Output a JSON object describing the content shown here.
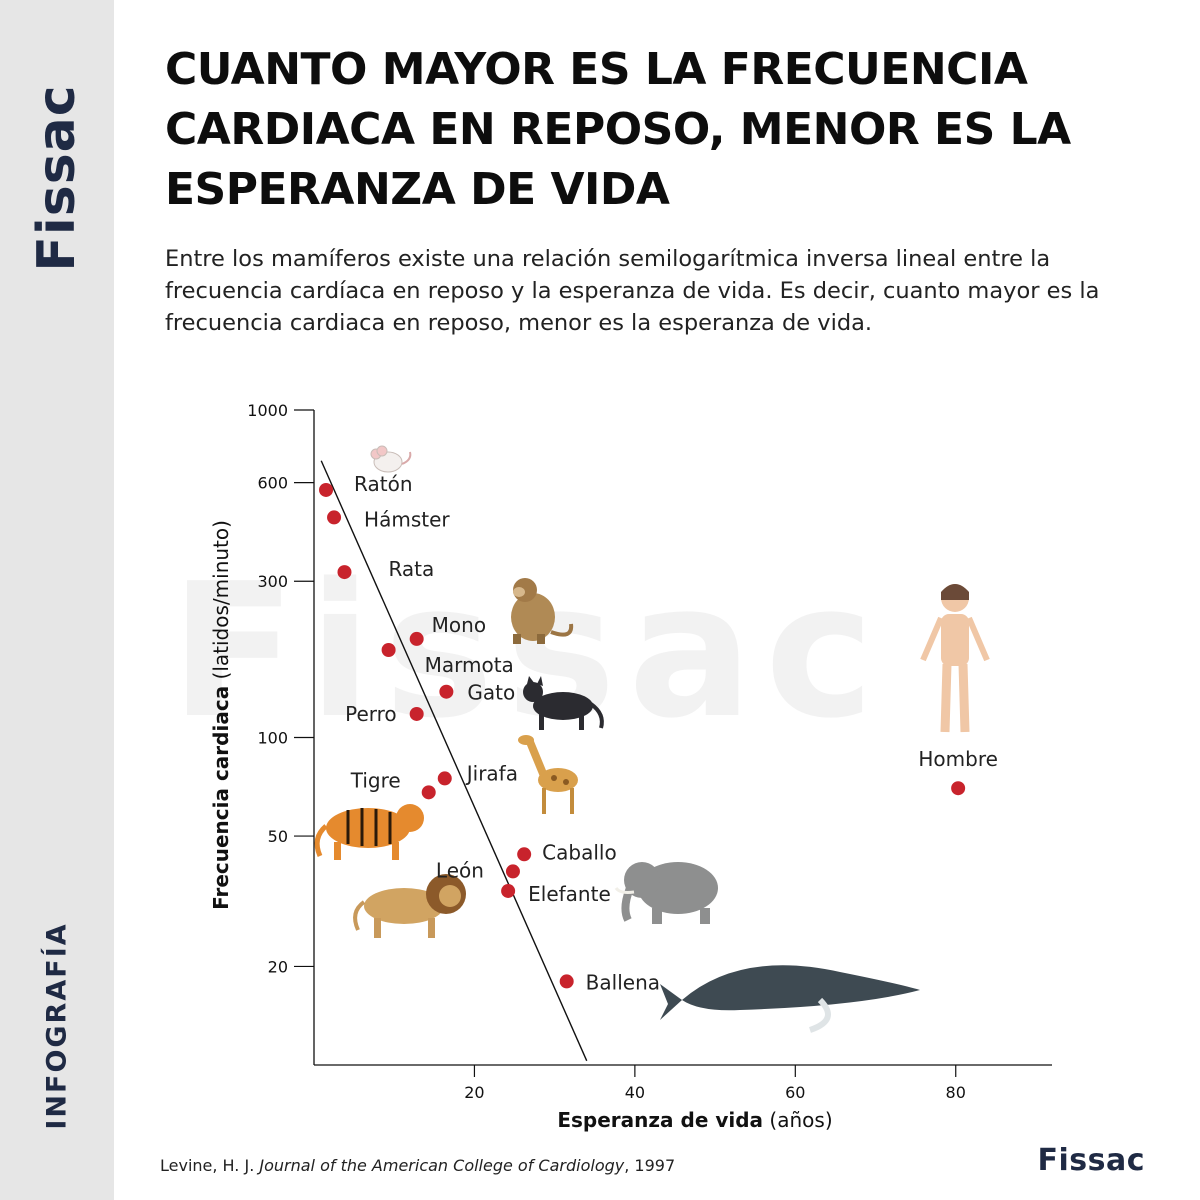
{
  "brand": {
    "sidebar_logo": "Fissac",
    "footer_logo": "Fissac",
    "watermark": "Fissac"
  },
  "section_label": "INFOGRAFÍA",
  "title": "CUANTO MAYOR ES LA FRECUENCIA CARDIACA EN REPOSO, MENOR ES LA ESPERANZA DE VIDA",
  "subtitle": "Entre los mamíferos existe una relación semilogarítmica inversa lineal entre la frecuencia cardíaca en reposo y la esperanza de vida. Es decir, cuanto mayor es la frecuencia cardiaca en reposo, menor es la esperanza de vida.",
  "source": {
    "author": "Levine, H. J. ",
    "journal": "Journal of the American College of Cardiology",
    "year": ", 1997"
  },
  "colors": {
    "point": "#c8232c",
    "brand": "#1f2a44",
    "sidebar": "#e6e6e6",
    "axis": "#111111"
  },
  "chart_data": {
    "type": "scatter",
    "xlabel": "Esperanza de vida",
    "xlabel_unit": "(años)",
    "ylabel": "Frecuencia cardiaca",
    "ylabel_unit": "(latidos/minuto)",
    "y_scale": "log",
    "xlim": [
      0,
      92
    ],
    "ylim": [
      10,
      1000
    ],
    "x_ticks": [
      20,
      40,
      60,
      80
    ],
    "y_ticks": [
      20,
      50,
      100,
      300,
      600,
      1000
    ],
    "trend_line": {
      "x": [
        0.9,
        34
      ],
      "y": [
        700,
        10.3
      ]
    },
    "points": [
      {
        "name": "Ratón",
        "x": 1.5,
        "y": 570,
        "icon": "mouse-icon"
      },
      {
        "name": "Hámster",
        "x": 2.5,
        "y": 470,
        "icon": null
      },
      {
        "name": "Rata",
        "x": 3.8,
        "y": 320,
        "icon": null
      },
      {
        "name": "Mono",
        "x": 12.8,
        "y": 200,
        "icon": "monkey-icon"
      },
      {
        "name": "Marmota",
        "x": 9.3,
        "y": 185,
        "icon": null
      },
      {
        "name": "Gato",
        "x": 16.5,
        "y": 138,
        "icon": "cat-icon"
      },
      {
        "name": "Perro",
        "x": 12.8,
        "y": 118,
        "icon": null
      },
      {
        "name": "Jirafa",
        "x": 16.3,
        "y": 75,
        "icon": "giraffe-icon"
      },
      {
        "name": "Tigre",
        "x": 14.3,
        "y": 68,
        "icon": "tiger-icon"
      },
      {
        "name": "Caballo",
        "x": 26.2,
        "y": 44,
        "icon": null
      },
      {
        "name": "León",
        "x": 24.8,
        "y": 39,
        "icon": "lion-icon"
      },
      {
        "name": "Elefante",
        "x": 24.2,
        "y": 34,
        "icon": "elephant-icon"
      },
      {
        "name": "Ballena",
        "x": 31.5,
        "y": 18,
        "icon": "whale-icon"
      },
      {
        "name": "Hombre",
        "x": 80.3,
        "y": 70,
        "icon": "human-icon"
      }
    ]
  }
}
